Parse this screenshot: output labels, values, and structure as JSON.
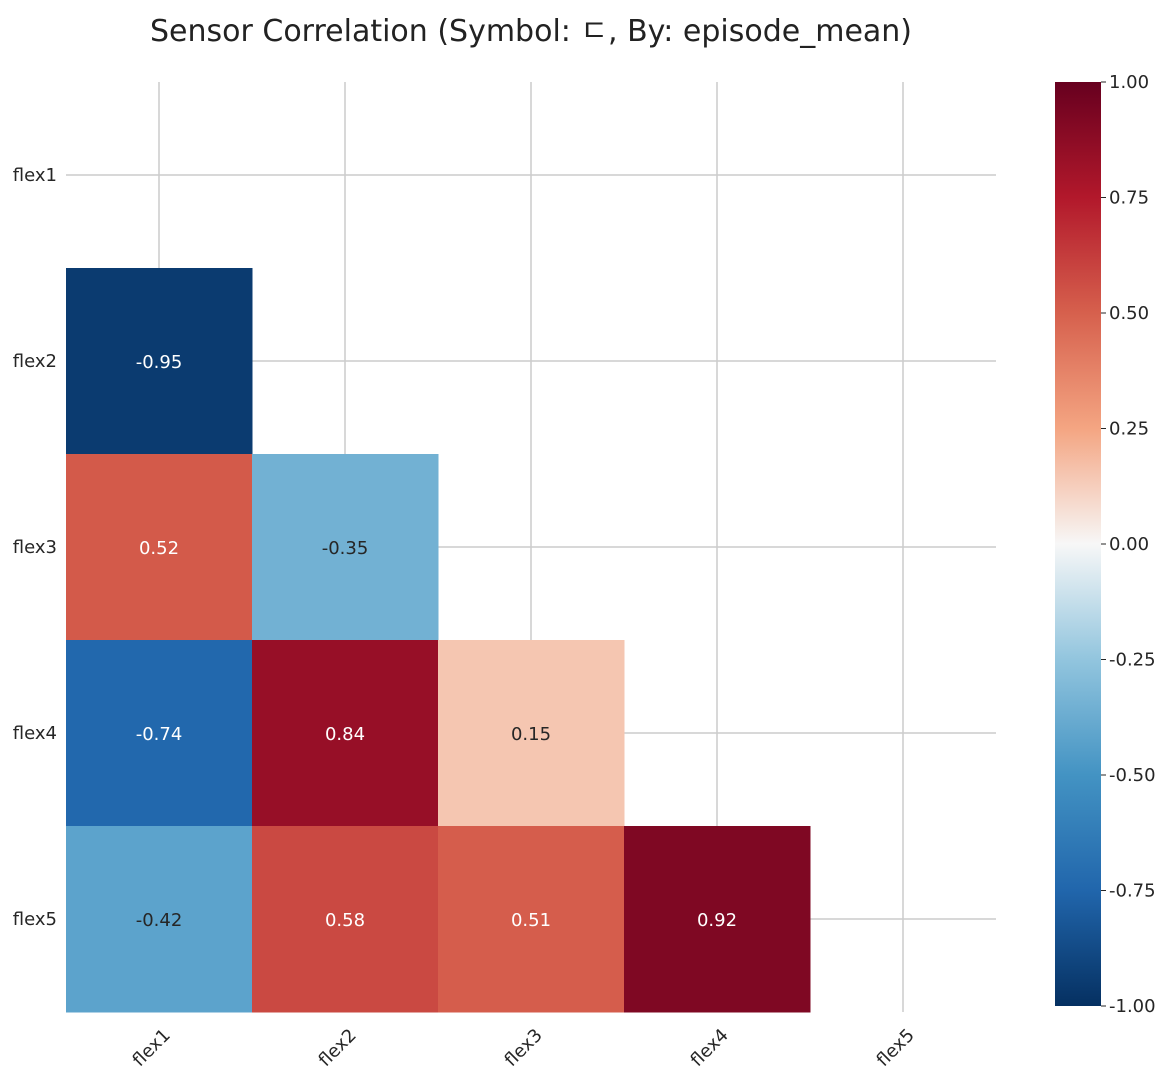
{
  "chart_data": {
    "type": "heatmap",
    "title": "Sensor Correlation (Symbol: ㄷ, By: episode_mean)",
    "xlabel": "",
    "ylabel": "",
    "x_labels": [
      "flex1",
      "flex2",
      "flex3",
      "flex4",
      "flex5"
    ],
    "y_labels": [
      "flex1",
      "flex2",
      "flex3",
      "flex4",
      "flex5"
    ],
    "values": [
      [
        null,
        null,
        null,
        null,
        null
      ],
      [
        -0.95,
        null,
        null,
        null,
        null
      ],
      [
        0.52,
        -0.35,
        null,
        null,
        null
      ],
      [
        -0.74,
        0.84,
        0.15,
        null,
        null
      ],
      [
        -0.42,
        0.58,
        0.51,
        0.92,
        null
      ]
    ],
    "mask": "upper-triangle-including-diagonal",
    "annotations_format": "0.00",
    "colormap": "RdBu_r",
    "vmin": -1.0,
    "vmax": 1.0,
    "colorbar_ticks": [
      "1.00",
      "0.75",
      "0.50",
      "0.25",
      "0.00",
      "-0.25",
      "-0.50",
      "-0.75",
      "-1.00"
    ],
    "grid": true,
    "colorbar_position": "right",
    "x_tick_rotation_deg": 45
  }
}
